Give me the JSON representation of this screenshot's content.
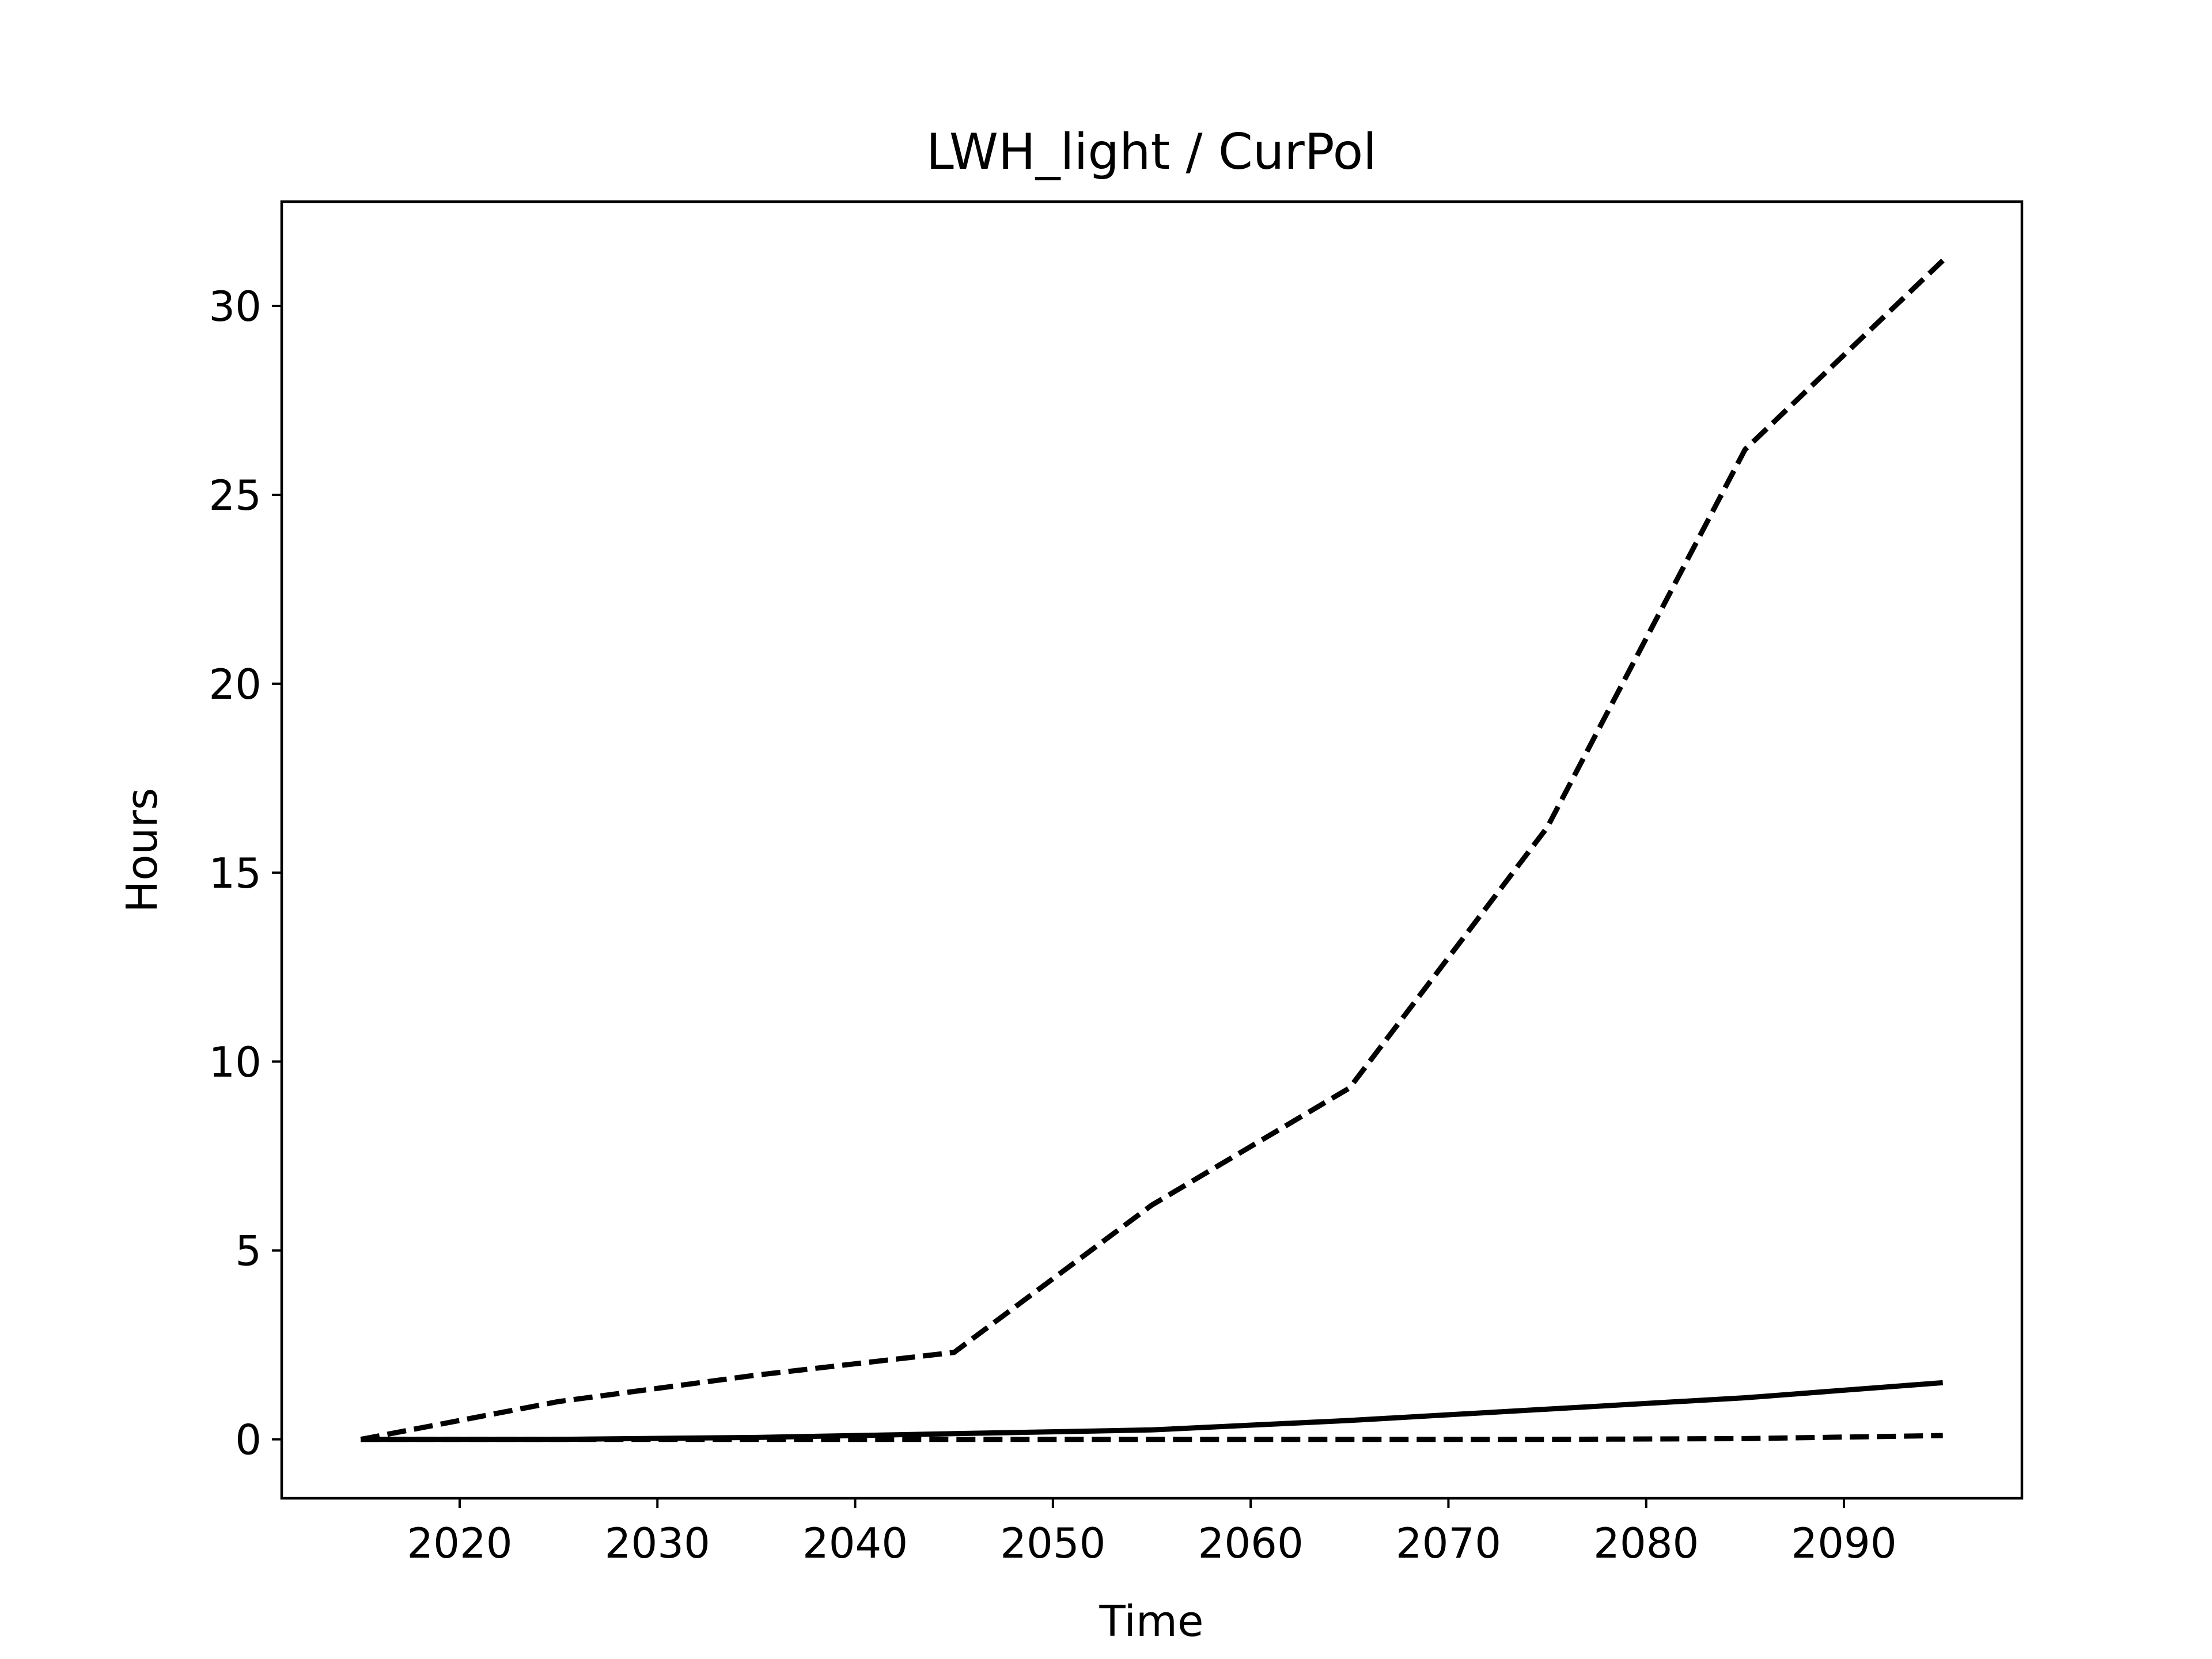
{
  "chart_data": {
    "type": "line",
    "title": "LWH_light / CurPol",
    "xlabel": "Time",
    "ylabel": "Hours",
    "xlim": [
      2011,
      2099
    ],
    "ylim": [
      -1.56,
      32.76
    ],
    "xticks": [
      2020,
      2030,
      2040,
      2050,
      2060,
      2070,
      2080,
      2090
    ],
    "yticks": [
      0,
      5,
      10,
      15,
      20,
      25,
      30
    ],
    "grid": false,
    "legend": null,
    "series": [
      {
        "style": "dashed",
        "color": "#000000",
        "x": [
          2015,
          2025,
          2035,
          2045,
          2055,
          2065,
          2075,
          2085,
          2095
        ],
        "y": [
          0.0,
          1.0,
          1.7,
          2.3,
          6.2,
          9.3,
          16.2,
          26.2,
          31.2
        ]
      },
      {
        "style": "solid",
        "color": "#000000",
        "x": [
          2015,
          2025,
          2035,
          2045,
          2055,
          2065,
          2075,
          2085,
          2095
        ],
        "y": [
          0.0,
          0.0,
          0.05,
          0.15,
          0.25,
          0.5,
          0.8,
          1.1,
          1.5
        ]
      },
      {
        "style": "dashed",
        "color": "#000000",
        "x": [
          2015,
          2025,
          2035,
          2045,
          2055,
          2065,
          2075,
          2085,
          2095
        ],
        "y": [
          0.0,
          0.0,
          0.0,
          0.0,
          0.0,
          0.0,
          0.0,
          0.02,
          0.1
        ]
      }
    ]
  }
}
